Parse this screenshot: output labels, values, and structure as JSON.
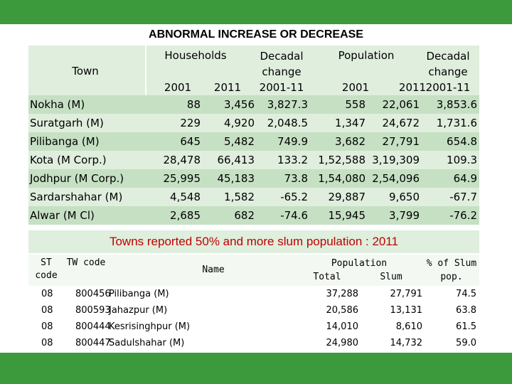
{
  "title": "ABNORMAL INCREASE OR DECREASE",
  "table1": {
    "headers": {
      "town": "Town",
      "households": "Households",
      "hh_2001": "2001",
      "hh_2011": "2011",
      "hh_decadal_1": "Decadal",
      "hh_decadal_2": "change",
      "hh_decadal_3": "2001-11",
      "population": "Population",
      "pop_2001": "2001",
      "pop_2011": "2011",
      "pop_decadal_1": "Decadal",
      "pop_decadal_2": "change",
      "pop_decadal_3": "2001-11"
    },
    "rows": [
      {
        "town": "Nokha (M)",
        "hh2001": "88",
        "hh2011": "3,456",
        "hhchg": "3,827.3",
        "pop2001": "558",
        "pop2011": "22,061",
        "popchg": "3,853.6"
      },
      {
        "town": "Suratgarh (M)",
        "hh2001": "229",
        "hh2011": "4,920",
        "hhchg": "2,048.5",
        "pop2001": "1,347",
        "pop2011": "24,672",
        "popchg": "1,731.6"
      },
      {
        "town": "Pilibanga (M)",
        "hh2001": "645",
        "hh2011": "5,482",
        "hhchg": "749.9",
        "pop2001": "3,682",
        "pop2011": "27,791",
        "popchg": "654.8"
      },
      {
        "town": "Kota (M Corp.)",
        "hh2001": "28,478",
        "hh2011": "66,413",
        "hhchg": "133.2",
        "pop2001": "1,52,588",
        "pop2011": "3,19,309",
        "popchg": "109.3"
      },
      {
        "town": "Jodhpur (M Corp.)",
        "hh2001": "25,995",
        "hh2011": "45,183",
        "hhchg": "73.8",
        "pop2001": "1,54,080",
        "pop2011": "2,54,096",
        "popchg": "64.9"
      },
      {
        "town": "Sardarshahar (M)",
        "hh2001": "4,548",
        "hh2011": "1,582",
        "hhchg": "-65.2",
        "pop2001": "29,887",
        "pop2011": "9,650",
        "popchg": "-67.7"
      },
      {
        "town": "Alwar (M Cl)",
        "hh2001": "2,685",
        "hh2011": "682",
        "hhchg": "-74.6",
        "pop2001": "15,945",
        "pop2011": "3,799",
        "popchg": "-76.2"
      }
    ]
  },
  "subtitle": "Towns reported 50% and more slum population : 2011",
  "table2": {
    "headers": {
      "st_1": "ST",
      "st_2": "code",
      "tw": "TW code",
      "name": "Name",
      "population": "Population",
      "total": "Total",
      "slum": "Slum",
      "pct_1": "% of Slum",
      "pct_2": "pop."
    },
    "rows": [
      {
        "st": "08",
        "tw": "800456",
        "name": "Pilibanga (M)",
        "total": "37,288",
        "slum": "27,791",
        "pct": "74.5"
      },
      {
        "st": "08",
        "tw": "800593",
        "name": "Jahazpur (M)",
        "total": "20,586",
        "slum": "13,131",
        "pct": "63.8"
      },
      {
        "st": "08",
        "tw": "800444",
        "name": "Kesrisinghpur (M)",
        "total": "14,010",
        "slum": "8,610",
        "pct": "61.5"
      },
      {
        "st": "08",
        "tw": "800447",
        "name": "Sadulshahar (M)",
        "total": "24,980",
        "slum": "14,732",
        "pct": "59.0"
      }
    ]
  },
  "colors": {
    "band": "#3c9a3c",
    "header_fill": "#dfeedd",
    "row_dark": "#c6e0c4",
    "subtitle_text": "#c00000"
  }
}
